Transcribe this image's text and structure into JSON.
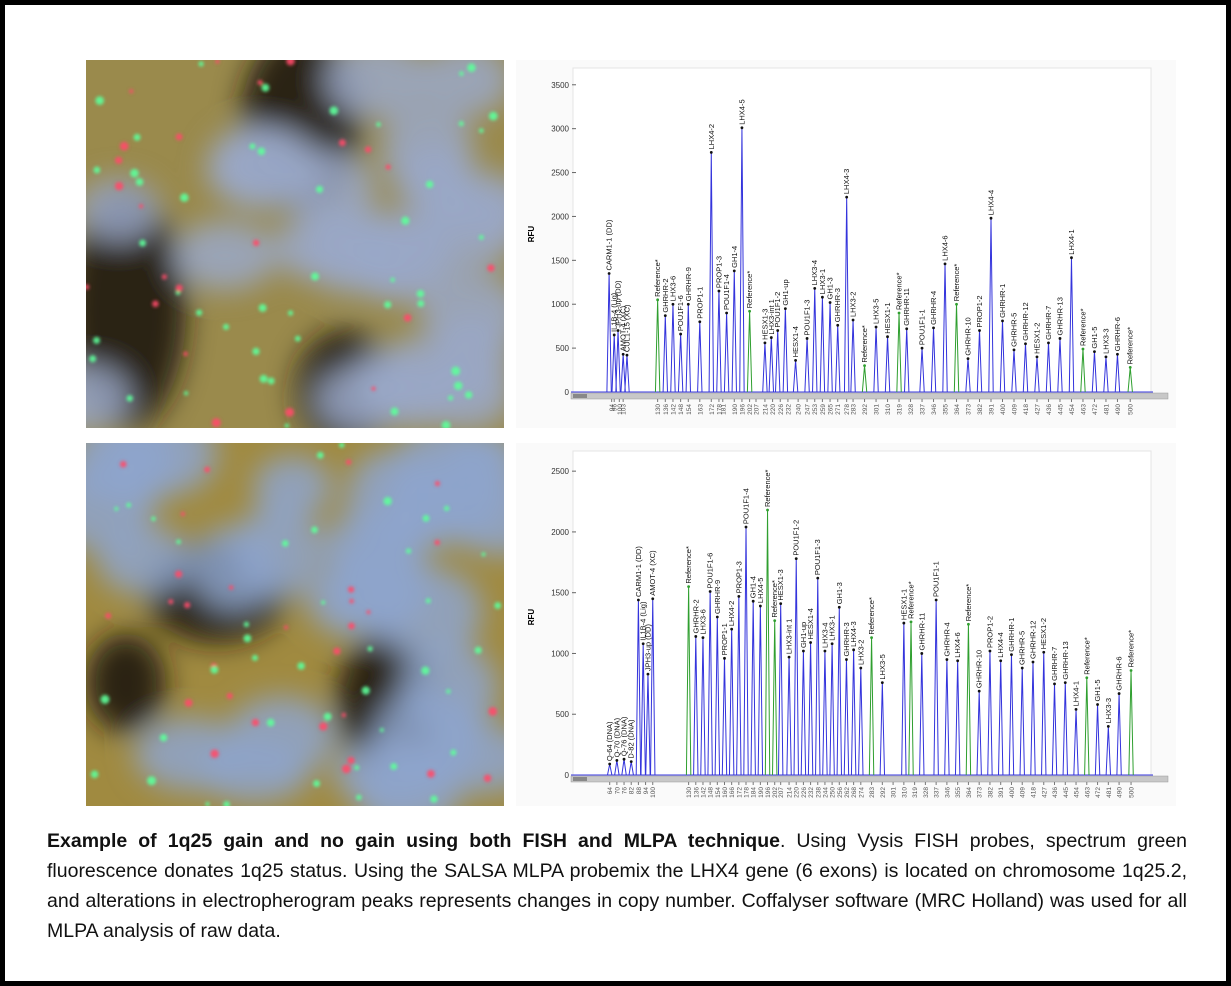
{
  "chart_data": [
    {
      "type": "peak",
      "y_label": "RFU",
      "xlim": [
        70,
        510
      ],
      "ylim": [
        0,
        3600
      ],
      "yticks": [
        0,
        500,
        1000,
        1500,
        2000,
        2500,
        3000,
        3500
      ],
      "xticks": [
        94,
        96,
        100,
        103,
        130,
        136,
        142,
        148,
        154,
        163,
        172,
        178,
        181,
        190,
        196,
        202,
        207,
        214,
        220,
        226,
        232,
        240,
        247,
        253,
        259,
        265,
        271,
        278,
        283,
        292,
        301,
        310,
        319,
        328,
        337,
        346,
        355,
        364,
        373,
        382,
        391,
        400,
        409,
        418,
        427,
        436,
        445,
        454,
        463,
        472,
        481,
        490,
        500
      ],
      "color": "#3434dc",
      "reference_color": "#2f9f2f",
      "categories": [
        "CARM1-1 (DD)",
        "IL1B-4 (Lig)",
        "JPH3-up (DD)",
        "AMOT-4 (XC)",
        "CUL1-15 (XC)",
        "Reference*",
        "GHRHR-2",
        "LHX3-6",
        "POU1F1-6",
        "GHRHR-9",
        "PROP1-1",
        "LHX4-2",
        "PROP1-3",
        "POU1F1-4",
        "GH1-4",
        "LHX4-5",
        "Reference*",
        "HESX1-3",
        "LHX3-int 1",
        "POU1F1-2",
        "GH1-up",
        "HESX1-4",
        "POU1F1-3",
        "LHX3-4",
        "LHX3-1",
        "GH1-3",
        "GHRHR-3",
        "LHX4-3",
        "LHX3-2",
        "Reference*",
        "LHX3-5",
        "HESX1-1",
        "Reference*",
        "GHRHR-11",
        "POU1F1-1",
        "GHRHR-4",
        "LHX4-6",
        "Reference*",
        "GHRHR-10",
        "PROP1-2",
        "LHX4-4",
        "GHRHR-1",
        "GHRHR-5",
        "GHRHR-12",
        "HESX1-2",
        "GHRHR-7",
        "GHRHR-13",
        "LHX4-1",
        "Reference*",
        "GH1-5",
        "LHX3-3",
        "GHRHR-6",
        "Reference*"
      ],
      "x": [
        92,
        96,
        99,
        103,
        106,
        130,
        136,
        142,
        148,
        154,
        163,
        172,
        178,
        184,
        190,
        196,
        202,
        214,
        219,
        224,
        230,
        238,
        247,
        253,
        259,
        265,
        271,
        278,
        283,
        292,
        301,
        310,
        319,
        325,
        337,
        346,
        355,
        364,
        373,
        382,
        391,
        400,
        409,
        418,
        427,
        436,
        445,
        454,
        463,
        472,
        481,
        490,
        500
      ],
      "values": [
        1350,
        650,
        700,
        430,
        420,
        1050,
        870,
        1000,
        660,
        1000,
        800,
        2730,
        1150,
        900,
        1380,
        3010,
        920,
        560,
        620,
        700,
        950,
        360,
        610,
        1180,
        1080,
        1020,
        760,
        2220,
        820,
        300,
        740,
        630,
        900,
        720,
        500,
        730,
        1460,
        1000,
        380,
        700,
        1980,
        810,
        480,
        550,
        400,
        560,
        610,
        1530,
        490,
        460,
        400,
        430,
        280
      ]
    },
    {
      "type": "peak",
      "y_label": "RFU",
      "xlim": [
        40,
        510
      ],
      "ylim": [
        0,
        2600
      ],
      "yticks": [
        0,
        500,
        1000,
        1500,
        2000,
        2500
      ],
      "xticks": [
        64,
        70,
        76,
        82,
        88,
        94,
        100,
        130,
        136,
        142,
        148,
        154,
        160,
        166,
        172,
        178,
        184,
        190,
        196,
        202,
        207,
        214,
        220,
        226,
        232,
        238,
        244,
        250,
        256,
        262,
        268,
        274,
        283,
        292,
        301,
        310,
        319,
        328,
        337,
        346,
        355,
        364,
        373,
        382,
        391,
        400,
        409,
        418,
        427,
        436,
        445,
        454,
        463,
        472,
        481,
        490,
        500
      ],
      "color": "#3434dc",
      "reference_color": "#2f9f2f",
      "categories": [
        "Q-64 (DNA)",
        "Q-70 (DNA)",
        "Q-76 (DNA)",
        "D-82 (DNA)",
        "CARM1-1 (DD)",
        "IL1B-4 (Lig)",
        "JPH3-up (DD)",
        "AMOT-4 (XC)",
        "Reference*",
        "GHRHR-2",
        "LHX3-6",
        "POU1F1-6",
        "GHRHR-9",
        "PROP1-1",
        "LHX4-2",
        "PROP1-3",
        "POU1F1-4",
        "GH1-4",
        "LHX4-5",
        "Reference*",
        "Reference*",
        "HESX1-3",
        "LHX3-int 1",
        "POU1F1-2",
        "GH1-up",
        "HESX1-4",
        "POU1F1-3",
        "LHX3-4",
        "LHX3-1",
        "GH1-3",
        "GHRHR-3",
        "LHX4-3",
        "LHX3-2",
        "Reference*",
        "LHX3-5",
        "HESX1-1",
        "Reference*",
        "GHRHR-11",
        "POU1F1-1",
        "GHRHR-4",
        "LHX4-6",
        "Reference*",
        "GHRHR-10",
        "PROP1-2",
        "LHX4-4",
        "GHRHR-1",
        "GHRHR-5",
        "GHRHR-12",
        "HESX1-2",
        "GHRHR-7",
        "GHRHR-13",
        "LHX4-1",
        "Reference*",
        "GH1-5",
        "LHX3-3",
        "GHRHR-6",
        "Reference*"
      ],
      "x": [
        64,
        70,
        76,
        82,
        88,
        92,
        96,
        100,
        130,
        136,
        142,
        148,
        154,
        160,
        166,
        172,
        178,
        184,
        190,
        196,
        202,
        207,
        214,
        220,
        226,
        232,
        238,
        244,
        250,
        256,
        262,
        268,
        274,
        283,
        292,
        310,
        316,
        325,
        337,
        346,
        355,
        364,
        373,
        382,
        391,
        400,
        409,
        418,
        427,
        436,
        445,
        454,
        463,
        472,
        481,
        490,
        500
      ],
      "values": [
        90,
        120,
        130,
        110,
        1440,
        1080,
        830,
        1450,
        1550,
        1140,
        1130,
        1510,
        1300,
        960,
        1200,
        1470,
        2040,
        1430,
        1390,
        2180,
        1270,
        1410,
        970,
        1780,
        1020,
        1090,
        1620,
        1020,
        1080,
        1380,
        950,
        1030,
        880,
        1130,
        760,
        1250,
        1260,
        1000,
        1440,
        950,
        940,
        1240,
        690,
        1020,
        940,
        990,
        880,
        930,
        1010,
        750,
        760,
        540,
        800,
        580,
        400,
        670,
        860
      ]
    }
  ],
  "caption": {
    "bold": "Example of 1q25 gain and no gain using  both FISH and MLPA technique",
    "text": ". Using Vysis FISH probes, spectrum green fluorescence donates 1q25 status.  Using the SALSA MLPA probemix the LHX4 gene (6 exons) is located on chromosome 1q25.2, and alterations in electropherogram peaks represents changes in copy number. Coffalyser software (MRC Holland) was used for all MLPA analysis of raw data."
  }
}
